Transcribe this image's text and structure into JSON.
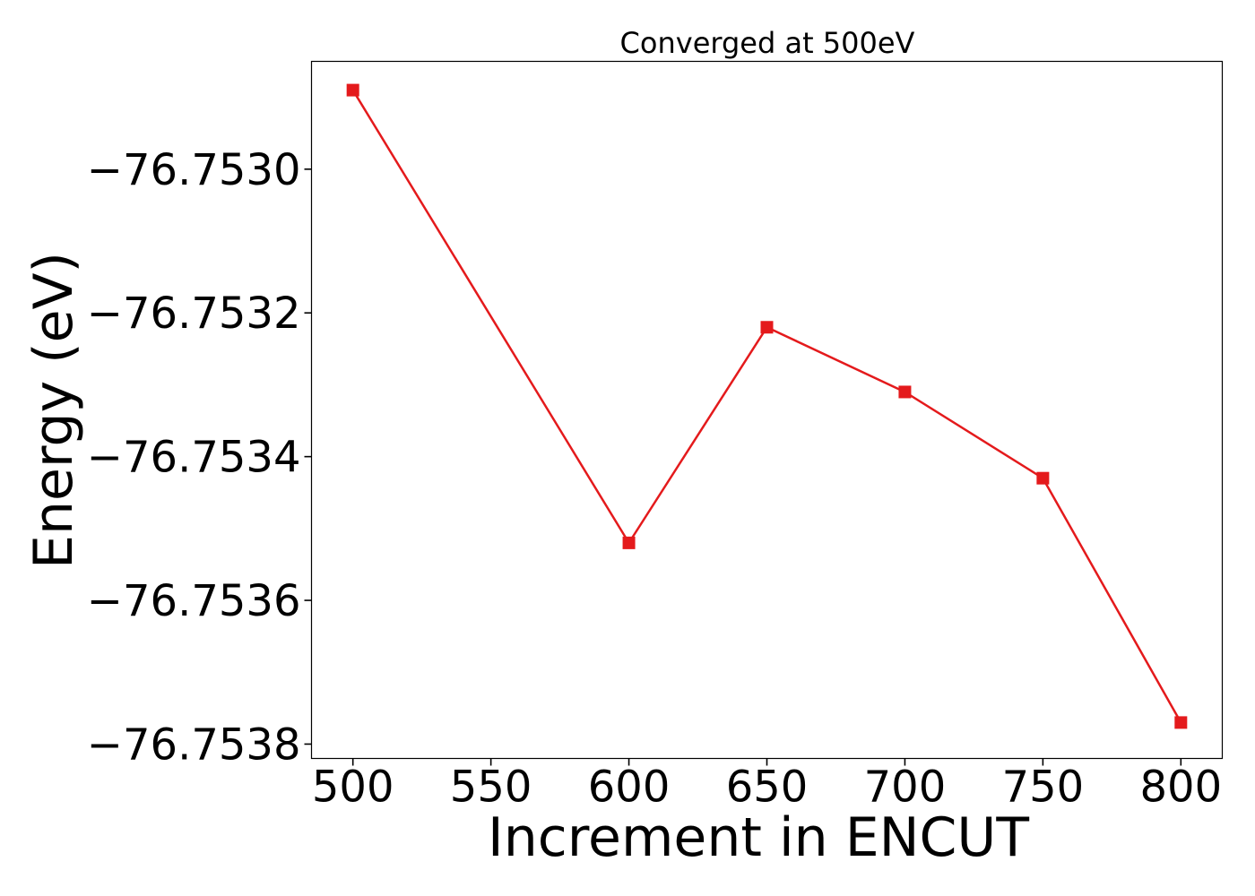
{
  "chart_data": {
    "type": "line",
    "title": "Converged at 500eV",
    "xlabel": "Increment in ENCUT",
    "ylabel": "Energy (eV)",
    "x": [
      500,
      600,
      650,
      700,
      750,
      800
    ],
    "series": [
      {
        "values": [
          -76.75289,
          -76.75352,
          -76.75322,
          -76.75331,
          -76.75343,
          -76.75377
        ],
        "color": "#e41a1c",
        "marker": "square"
      }
    ],
    "xticks": [
      500,
      550,
      600,
      650,
      700,
      750,
      800
    ],
    "xtick_labels": [
      "500",
      "550",
      "600",
      "650",
      "700",
      "750",
      "800"
    ],
    "yticks": [
      -76.753,
      -76.7532,
      -76.7534,
      -76.7536,
      -76.7538
    ],
    "ytick_labels": [
      "−76.7530",
      "−76.7532",
      "−76.7534",
      "−76.7536",
      "−76.7538"
    ],
    "xlim": [
      485,
      815
    ],
    "ylim": [
      -76.75382,
      -76.75285
    ],
    "grid": false,
    "legend": "none"
  }
}
